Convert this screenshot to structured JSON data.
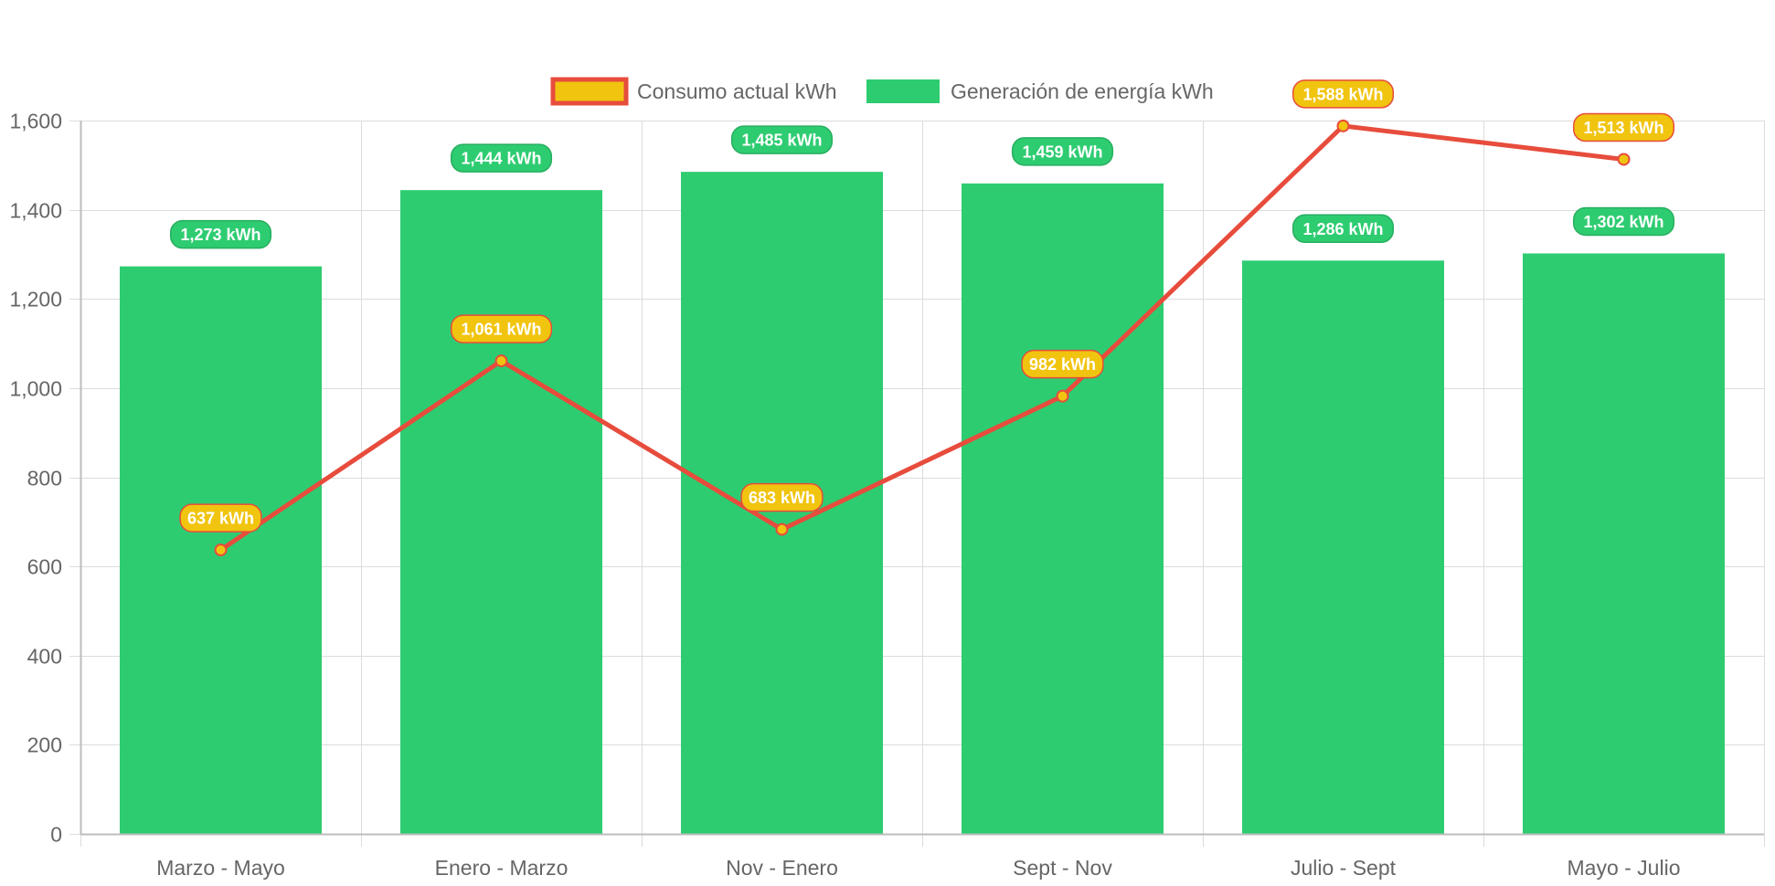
{
  "chart_data": {
    "type": "bar",
    "categories": [
      "Marzo - Mayo",
      "Enero - Marzo",
      "Nov - Enero",
      "Sept - Nov",
      "Julio - Sept",
      "Mayo - Julio"
    ],
    "series": [
      {
        "name": "Consumo actual kWh",
        "type": "line",
        "values": [
          637,
          1061,
          683,
          982,
          1588,
          1513
        ],
        "labels": [
          "637 kWh",
          "1,061 kWh",
          "683 kWh",
          "982 kWh",
          "1,588 kWh",
          "1,513 kWh"
        ],
        "line_color": "#e74c3c",
        "fill_color": "#f1c40f"
      },
      {
        "name": "Generación de energía kWh",
        "type": "bar",
        "values": [
          1273,
          1444,
          1485,
          1459,
          1286,
          1302
        ],
        "labels": [
          "1,273 kWh",
          "1,444 kWh",
          "1,485 kWh",
          "1,459 kWh",
          "1,286 kWh",
          "1,302 kWh"
        ],
        "fill_color": "#2ecc71",
        "label_color": "#27ae60"
      }
    ],
    "y_ticks": [
      "0",
      "200",
      "400",
      "600",
      "800",
      "1,000",
      "1,200",
      "1,400",
      "1,600"
    ],
    "ylim": [
      0,
      1600
    ],
    "grid": true,
    "legend_position": "top"
  }
}
